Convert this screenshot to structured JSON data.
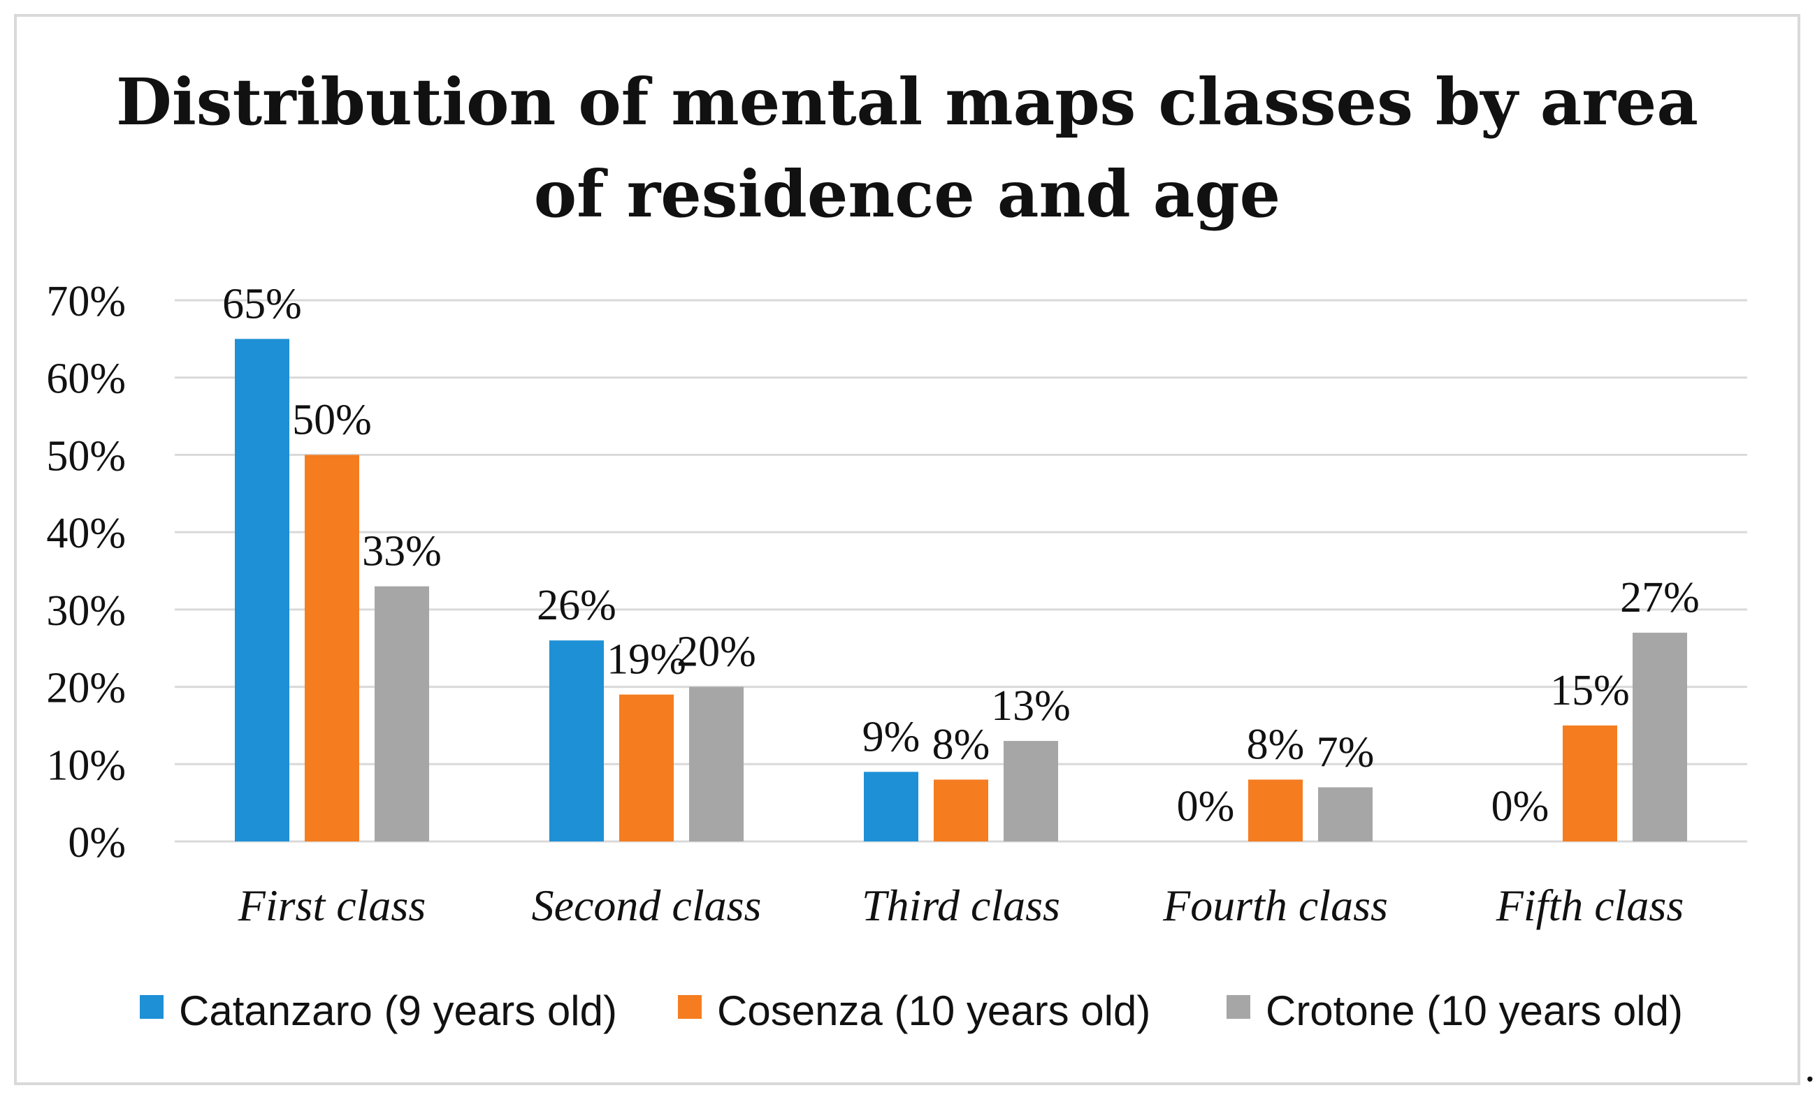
{
  "chart_data": {
    "type": "bar",
    "title_lines": [
      "Distribution of mental maps classes by area",
      "of residence and age"
    ],
    "categories": [
      "First class",
      "Second class",
      "Third class",
      "Fourth class",
      "Fifth class"
    ],
    "series": [
      {
        "name": "Catanzaro (9 years old)",
        "color": "#1e90d6",
        "values": [
          65,
          26,
          9,
          0,
          0
        ],
        "labels": [
          "65%",
          "26%",
          "9%",
          "0%",
          "0%"
        ]
      },
      {
        "name": "Cosenza (10 years old)",
        "color": "#f57c1f",
        "values": [
          50,
          19,
          8,
          8,
          15
        ],
        "labels": [
          "50%",
          "19%",
          "8%",
          "8%",
          "15%"
        ]
      },
      {
        "name": "Crotone (10 years old)",
        "color": "#a6a6a6",
        "values": [
          33,
          20,
          13,
          7,
          27
        ],
        "labels": [
          "33%",
          "20%",
          "13%",
          "7%",
          "27%"
        ]
      }
    ],
    "ylim": [
      0,
      70
    ],
    "yticks": [
      0,
      10,
      20,
      30,
      40,
      50,
      60,
      70
    ],
    "ytick_labels": [
      "0%",
      "10%",
      "20%",
      "30%",
      "40%",
      "50%",
      "60%",
      "70%"
    ],
    "xlabel": "",
    "ylabel": "",
    "grid": true,
    "legend_position": "bottom"
  },
  "trailing_mark": "."
}
